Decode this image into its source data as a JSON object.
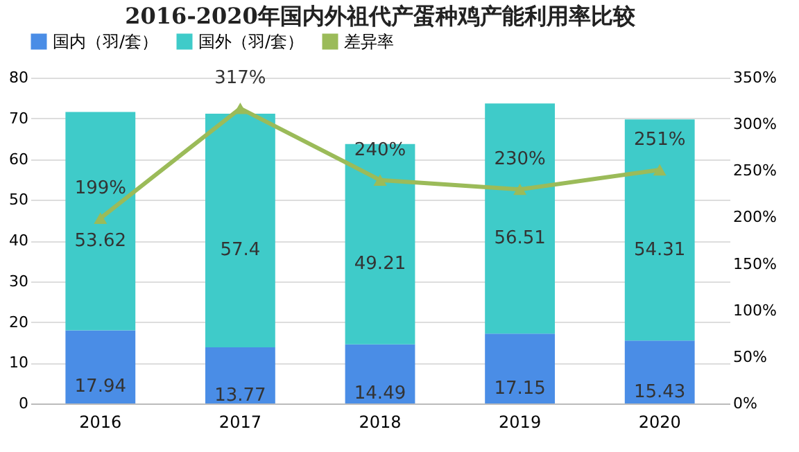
{
  "chart_data": {
    "type": "bar",
    "title": "2016-2020年国内外祖代产蛋种鸡产能利用率比较",
    "categories": [
      "2016",
      "2017",
      "2018",
      "2019",
      "2020"
    ],
    "stacked": true,
    "data_labels": true,
    "series": [
      {
        "name": "国内（羽/套）",
        "color": "#4a8de6",
        "values": [
          17.94,
          13.77,
          14.49,
          17.15,
          15.43
        ]
      },
      {
        "name": "国外（羽/套）",
        "color": "#3fcbc9",
        "values": [
          53.62,
          57.4,
          49.21,
          56.51,
          54.31
        ]
      },
      {
        "name": "差异率",
        "type": "line",
        "axis": "y2",
        "color": "#9bbb59",
        "marker": "triangle",
        "values": [
          199,
          317,
          240,
          230,
          251
        ],
        "value_labels": [
          "199%",
          "317%",
          "240%",
          "230%",
          "251%"
        ]
      }
    ],
    "ylim": [
      0,
      80
    ],
    "yticks": [
      0,
      10,
      20,
      30,
      40,
      50,
      60,
      70,
      80
    ],
    "y2lim": [
      0,
      350
    ],
    "y2ticks": [
      {
        "value": 0,
        "label": "0%"
      },
      {
        "value": 50,
        "label": "50%"
      },
      {
        "value": 100,
        "label": "100%"
      },
      {
        "value": 150,
        "label": "150%"
      },
      {
        "value": 200,
        "label": "200%"
      },
      {
        "value": 250,
        "label": "250%"
      },
      {
        "value": 300,
        "label": "300%"
      },
      {
        "value": 350,
        "label": "350%"
      }
    ],
    "grid": "y",
    "legend": "top"
  }
}
